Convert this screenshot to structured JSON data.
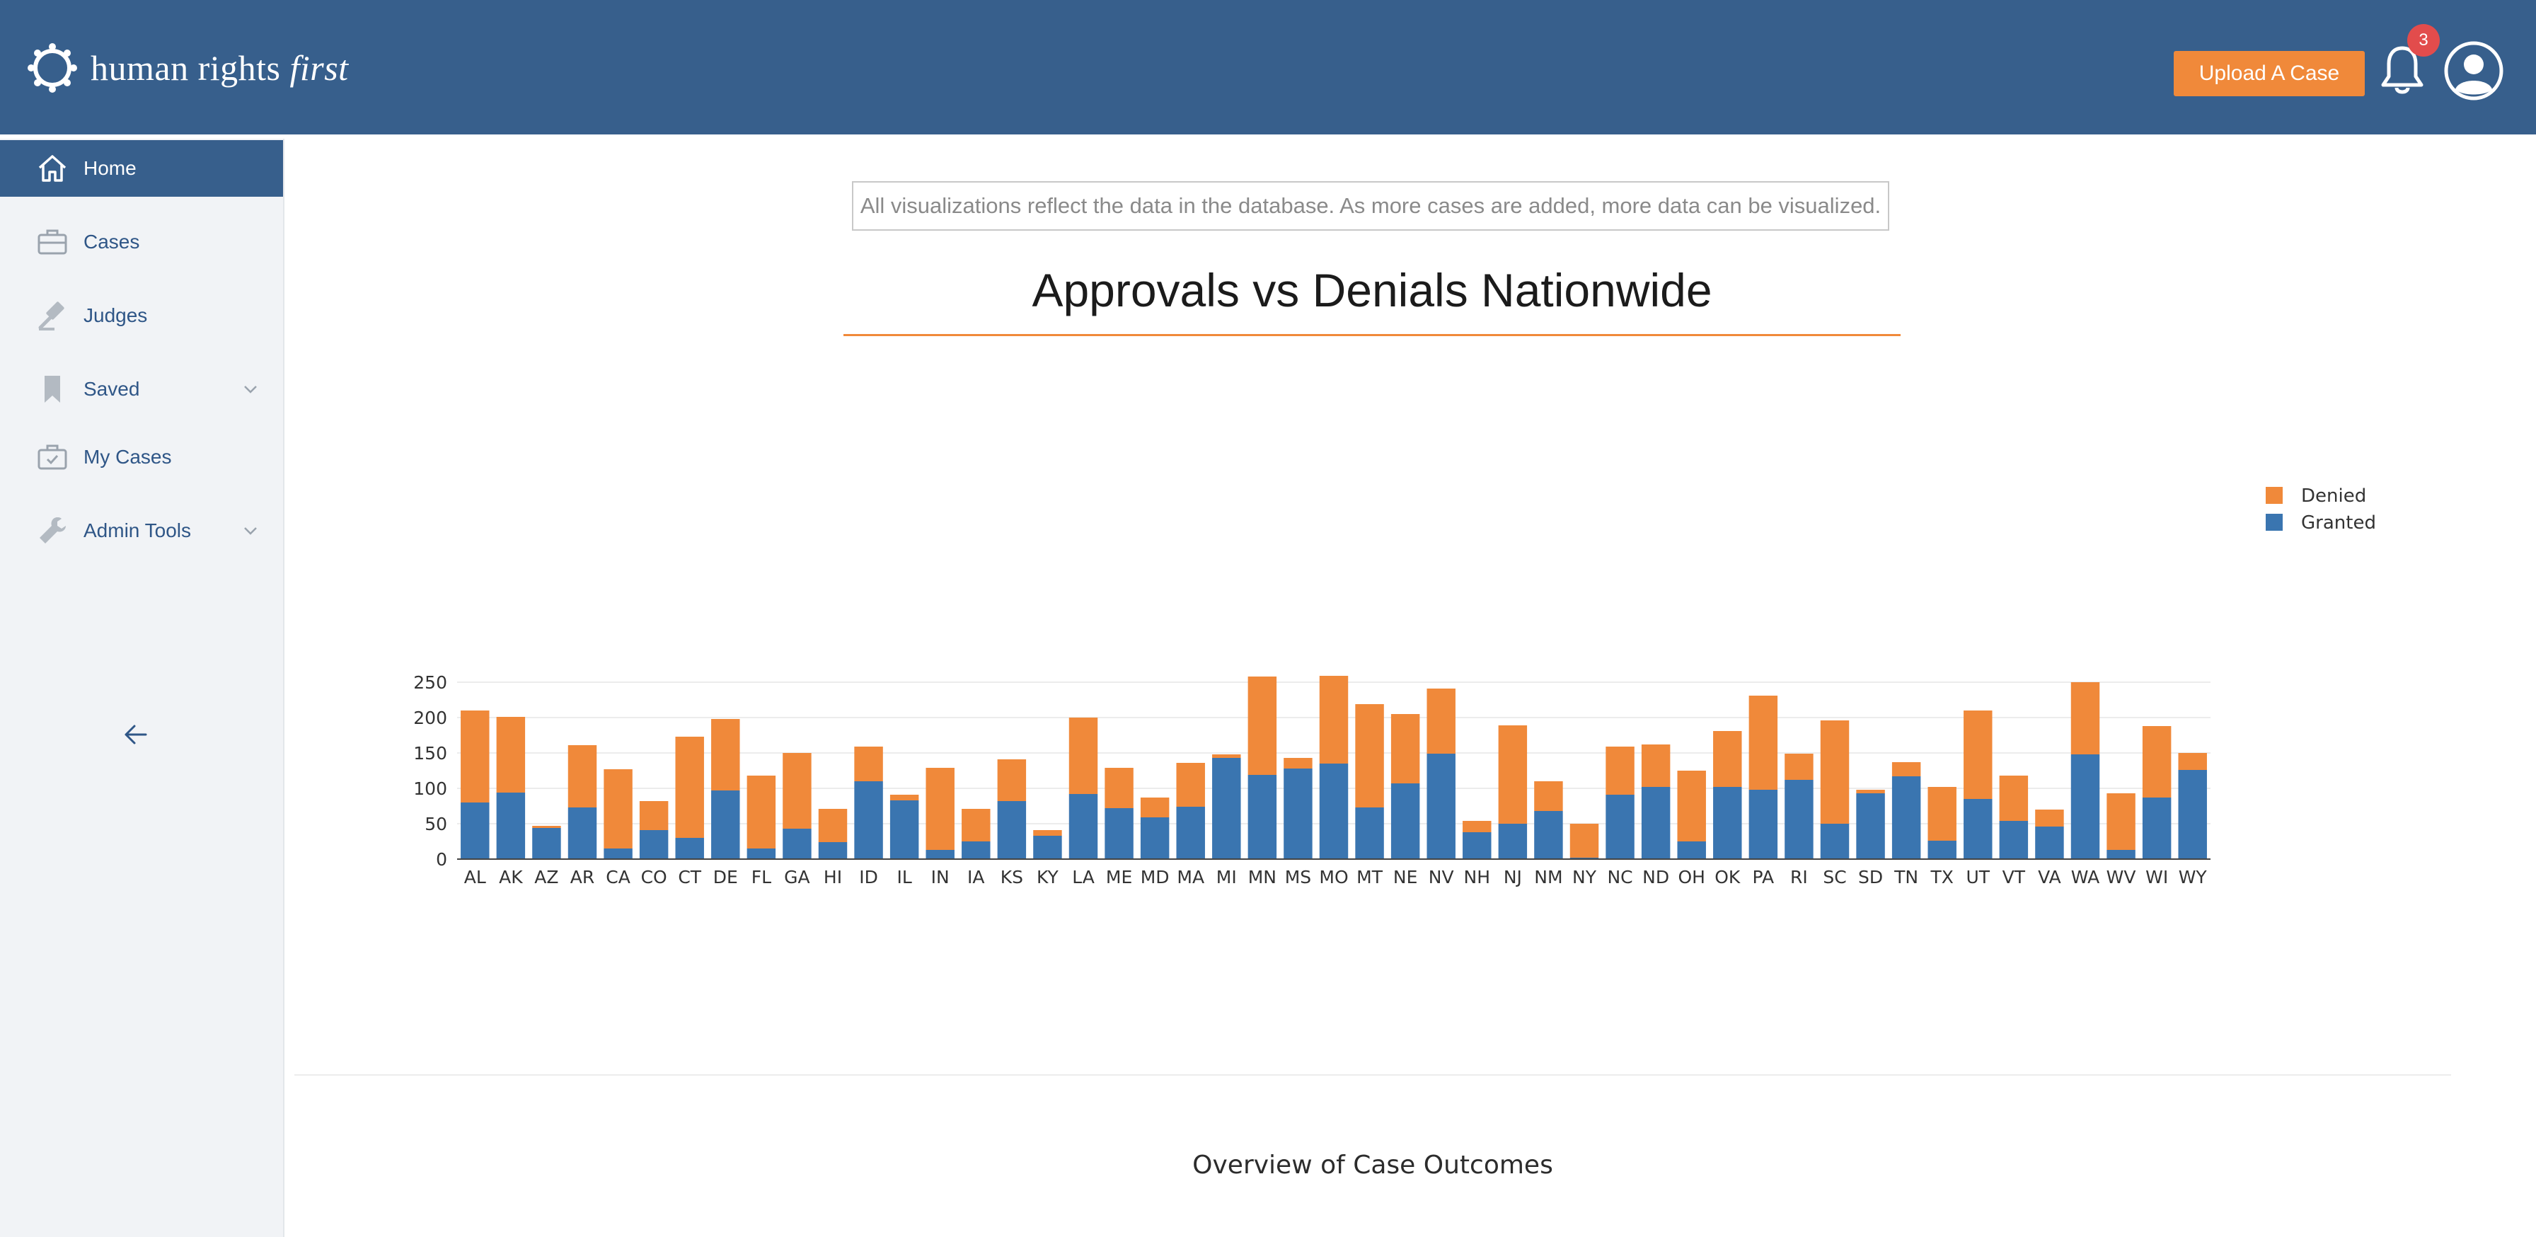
{
  "header": {
    "logo_text_main": "human rights",
    "logo_text_accent": "first",
    "upload_label": "Upload A Case",
    "notification_count": "3",
    "bell_icon": "bell-icon",
    "avatar_icon": "user-avatar-icon"
  },
  "sidebar": {
    "items": [
      {
        "label": "Home",
        "icon": "home-icon",
        "active": true
      },
      {
        "label": "Cases",
        "icon": "briefcase-icon"
      },
      {
        "label": "Judges",
        "icon": "gavel-icon"
      },
      {
        "label": "Saved",
        "icon": "bookmark-icon",
        "expandable": true
      },
      {
        "label": "My Cases",
        "icon": "briefcase-check-icon"
      },
      {
        "label": "Admin Tools",
        "icon": "wrench-icon",
        "expandable": true
      }
    ],
    "collapse_icon": "arrow-left-icon"
  },
  "main": {
    "notice": "All visualizations reflect the data in the database. As more cases are added, more data can be visualized.",
    "title": "Approvals vs Denials Nationwide",
    "section_title": "Overview of Case Outcomes"
  },
  "colors": {
    "brand": "#375f8c",
    "accent": "#f0893a",
    "granted": "#3a75b0",
    "denied": "#f0893a",
    "badge": "#e24c4c"
  },
  "chart_data": {
    "type": "bar",
    "stacked": true,
    "categories": [
      "AL",
      "AK",
      "AZ",
      "AR",
      "CA",
      "CO",
      "CT",
      "DE",
      "FL",
      "GA",
      "HI",
      "ID",
      "IL",
      "IN",
      "IA",
      "KS",
      "KY",
      "LA",
      "ME",
      "MD",
      "MA",
      "MI",
      "MN",
      "MS",
      "MO",
      "MT",
      "NE",
      "NV",
      "NH",
      "NJ",
      "NM",
      "NY",
      "NC",
      "ND",
      "OH",
      "OK",
      "PA",
      "RI",
      "SC",
      "SD",
      "TN",
      "TX",
      "UT",
      "VT",
      "VA",
      "WA",
      "WV",
      "WI",
      "WY"
    ],
    "series": [
      {
        "name": "Granted",
        "color": "#3a75b0",
        "values": [
          80,
          94,
          44,
          73,
          15,
          41,
          30,
          97,
          15,
          43,
          24,
          110,
          83,
          13,
          25,
          82,
          33,
          92,
          72,
          59,
          74,
          143,
          119,
          128,
          135,
          73,
          107,
          149,
          38,
          50,
          68,
          2,
          91,
          102,
          25,
          102,
          98,
          112,
          50,
          93,
          117,
          26,
          85,
          54,
          46,
          148,
          13,
          87,
          126
        ]
      },
      {
        "name": "Denied",
        "color": "#f0893a",
        "values": [
          130,
          107,
          3,
          88,
          112,
          41,
          143,
          101,
          103,
          107,
          47,
          49,
          8,
          116,
          46,
          59,
          8,
          108,
          57,
          28,
          62,
          5,
          139,
          15,
          124,
          146,
          98,
          92,
          16,
          139,
          42,
          48,
          68,
          60,
          100,
          79,
          133,
          37,
          146,
          5,
          20,
          76,
          125,
          64,
          24,
          102,
          80,
          101,
          24
        ]
      }
    ],
    "ylim": [
      0,
      270
    ],
    "yticks": [
      0,
      50,
      100,
      150,
      200,
      250
    ],
    "grid": true,
    "legend_position": "top-right",
    "legend": [
      "Denied",
      "Granted"
    ]
  }
}
